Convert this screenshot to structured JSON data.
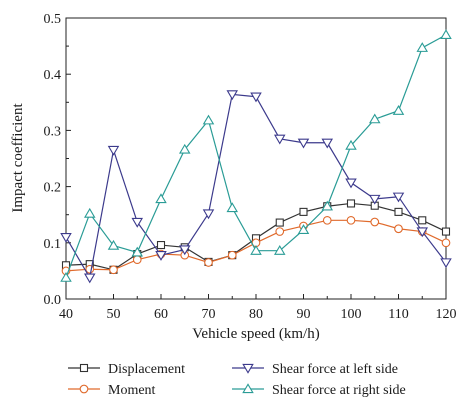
{
  "chart_data": {
    "type": "line",
    "xlabel": "Vehicle speed (km/h)",
    "ylabel": "Impact coefficient",
    "xlim": [
      40,
      120
    ],
    "ylim": [
      0.0,
      0.5
    ],
    "x_ticks": [
      40,
      50,
      60,
      70,
      80,
      90,
      100,
      110,
      120
    ],
    "y_ticks": [
      0.0,
      0.1,
      0.2,
      0.3,
      0.4,
      0.5
    ],
    "x_tick_labels": [
      "40",
      "50",
      "60",
      "70",
      "80",
      "90",
      "100",
      "110",
      "120"
    ],
    "y_tick_labels": [
      "0.0",
      "0.1",
      "0.2",
      "0.3",
      "0.4",
      "0.5"
    ],
    "grid": false,
    "legend_position": "bottom, below plot, two columns",
    "x": [
      40,
      45,
      50,
      55,
      60,
      65,
      70,
      75,
      80,
      85,
      90,
      95,
      100,
      105,
      110,
      115,
      120
    ],
    "series": [
      {
        "name": "Displacement",
        "marker": "square",
        "color": "#333333",
        "values": [
          0.06,
          0.062,
          0.052,
          0.08,
          0.096,
          0.092,
          0.066,
          0.078,
          0.108,
          0.136,
          0.155,
          0.165,
          0.17,
          0.166,
          0.155,
          0.14,
          0.12
        ]
      },
      {
        "name": "Moment",
        "marker": "circle",
        "color": "#e06a2c",
        "values": [
          0.05,
          0.053,
          0.052,
          0.07,
          0.08,
          0.078,
          0.065,
          0.078,
          0.1,
          0.12,
          0.13,
          0.14,
          0.14,
          0.137,
          0.125,
          0.12,
          0.1
        ]
      },
      {
        "name": "Shear force at left side",
        "marker": "triangle-down",
        "color": "#3c3a8c",
        "values": [
          0.11,
          0.038,
          0.265,
          0.137,
          0.078,
          0.088,
          0.152,
          0.364,
          0.36,
          0.285,
          0.278,
          0.278,
          0.207,
          0.178,
          0.182,
          0.12,
          0.065
        ]
      },
      {
        "name": "Shear force at right side",
        "marker": "triangle-up",
        "color": "#2a9c96",
        "values": [
          0.038,
          0.152,
          0.095,
          0.083,
          0.178,
          0.266,
          0.318,
          0.162,
          0.086,
          0.086,
          0.123,
          0.165,
          0.273,
          0.32,
          0.335,
          0.447,
          0.47
        ]
      }
    ]
  }
}
